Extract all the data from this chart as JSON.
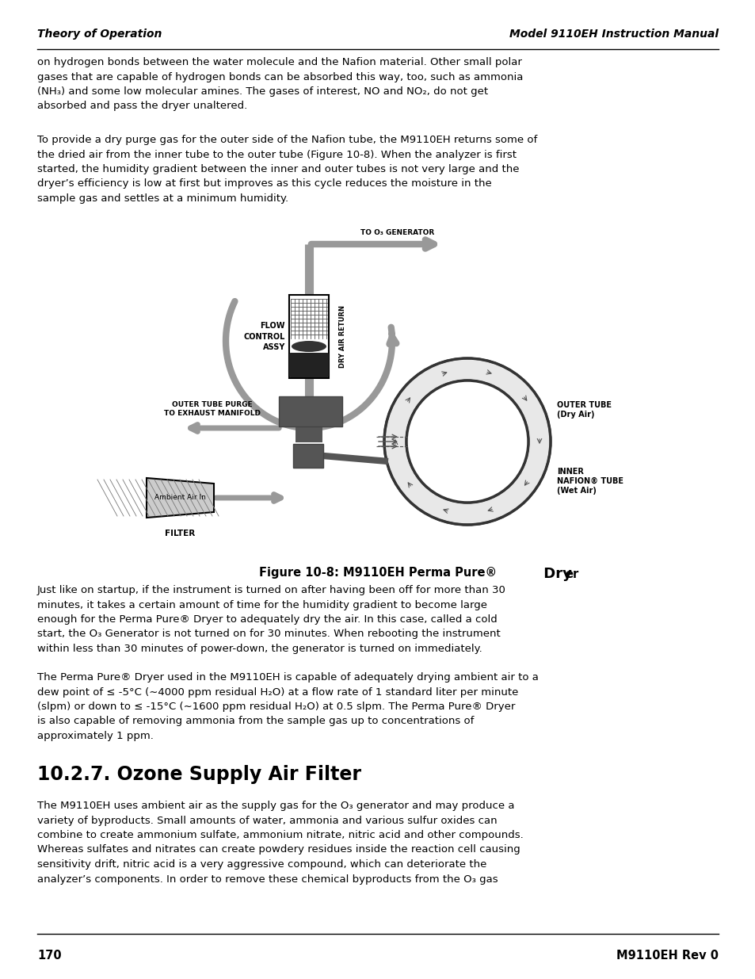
{
  "page_number": "170",
  "footer_right": "M9110EH Rev 0",
  "header_left": "Theory of Operation",
  "header_right": "Model 9110EH Instruction Manual",
  "bg_color": "#ffffff",
  "text_color": "#000000",
  "para1": "on hydrogen bonds between the water molecule and the Nafion material. Other small polar\ngases that are capable of hydrogen bonds can be absorbed this way, too, such as ammonia\n(NH₃) and some low molecular amines. The gases of interest, NO and NO₂, do not get\nabsorbed and pass the dryer unaltered.",
  "para2": "To provide a dry purge gas for the outer side of the Nafion tube, the M9110EH returns some of\nthe dried air from the inner tube to the outer tube (Figure 10-8). When the analyzer is first\nstarted, the humidity gradient between the inner and outer tubes is not very large and the\ndryer’s efficiency is low at first but improves as this cycle reduces the moisture in the\nsample gas and settles at a minimum humidity.",
  "para3": "Just like on startup, if the instrument is turned on after having been off for more than 30\nminutes, it takes a certain amount of time for the humidity gradient to become large\nenough for the Perma Pure® Dryer to adequately dry the air. In this case, called a cold\nstart, the O₃ Generator is not turned on for 30 minutes. When rebooting the instrument\nwithin less than 30 minutes of power-down, the generator is turned on immediately.",
  "para4": "The Perma Pure® Dryer used in the M9110EH is capable of adequately drying ambient air to a\ndew point of ≤ -5°C (∼4000 ppm residual H₂O) at a flow rate of 1 standard liter per minute\n(slpm) or down to ≤ -15°C (∼1600 ppm residual H₂O) at 0.5 slpm. The Perma Pure® Dryer\nis also capable of removing ammonia from the sample gas up to concentrations of\napproximately 1 ppm.",
  "section_title": "10.2.7. Ozone Supply Air Filter",
  "para5": "The M9110EH uses ambient air as the supply gas for the O₃ generator and may produce a\nvariety of byproducts. Small amounts of water, ammonia and various sulfur oxides can\ncombine to create ammonium sulfate, ammonium nitrate, nitric acid and other compounds.\nWhereas sulfates and nitrates can create powdery residues inside the reaction cell causing\nsensitivity drift, nitric acid is a very aggressive compound, which can deteriorate the\nanalyzer’s components. In order to remove these chemical byproducts from the O₃ gas"
}
